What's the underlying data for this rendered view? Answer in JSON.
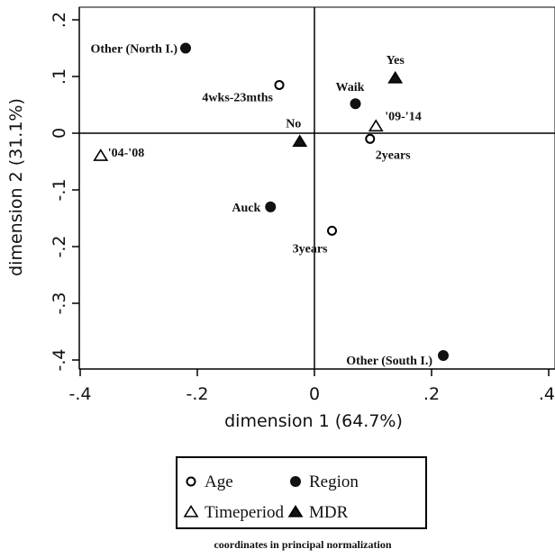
{
  "chart_data": {
    "type": "scatter",
    "xlabel": "dimension 1 (64.7%)",
    "ylabel": "dimension 2 (31.1%)",
    "xlim": [
      -0.4,
      0.4
    ],
    "ylim": [
      -0.4,
      0.2
    ],
    "x_ticks": [
      {
        "v": -0.4,
        "label": "-.4"
      },
      {
        "v": -0.2,
        "label": "-.2"
      },
      {
        "v": 0,
        "label": "0"
      },
      {
        "v": 0.2,
        "label": ".2"
      },
      {
        "v": 0.4,
        "label": ".4"
      }
    ],
    "y_ticks": [
      {
        "v": 0.2,
        "label": ".2"
      },
      {
        "v": 0.1,
        "label": ".1"
      },
      {
        "v": 0,
        "label": "0"
      },
      {
        "v": -0.1,
        "label": "-.1"
      },
      {
        "v": -0.2,
        "label": "-.2"
      },
      {
        "v": -0.3,
        "label": "-.3"
      },
      {
        "v": -0.4,
        "label": "-.4"
      }
    ],
    "reference_lines": {
      "x": 0,
      "y": 0
    },
    "series": [
      {
        "name": "Age",
        "marker": "circle-open",
        "points": [
          {
            "label": "4wks-23mths",
            "x": -0.06,
            "y": 0.085
          },
          {
            "label": "2years",
            "x": 0.095,
            "y": -0.01
          },
          {
            "label": "3years",
            "x": 0.03,
            "y": -0.172
          }
        ]
      },
      {
        "name": "Region",
        "marker": "circle-filled",
        "points": [
          {
            "label": "Other (North I.)",
            "x": -0.22,
            "y": 0.15
          },
          {
            "label": "Waik",
            "x": 0.07,
            "y": 0.052
          },
          {
            "label": "Auck",
            "x": -0.075,
            "y": -0.13
          },
          {
            "label": "Other (South I.)",
            "x": 0.22,
            "y": -0.392
          }
        ]
      },
      {
        "name": "Timeperiod",
        "marker": "triangle-open",
        "points": [
          {
            "label": "'04-'08",
            "x": -0.365,
            "y": -0.04
          },
          {
            "label": "'09-'14",
            "x": 0.105,
            "y": 0.012
          }
        ]
      },
      {
        "name": "MDR",
        "marker": "triangle-filled",
        "points": [
          {
            "label": "No",
            "x": -0.025,
            "y": -0.015
          },
          {
            "label": "Yes",
            "x": 0.138,
            "y": 0.097
          }
        ]
      }
    ],
    "legend": {
      "placement": "bottom",
      "columns": 2
    },
    "note": "coordinates in principal normalization"
  }
}
